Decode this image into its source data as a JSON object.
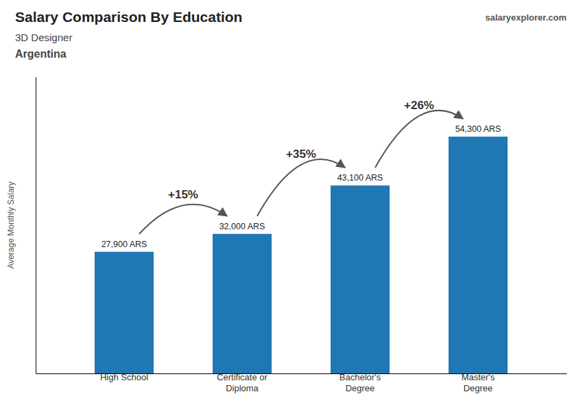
{
  "chart_data": {
    "type": "bar",
    "title": "Salary Comparison By Education",
    "subtitle": [
      "3D Designer",
      "Argentina"
    ],
    "source": "salaryexplorer.com",
    "categories": [
      "High School",
      "Certificate or\nDiploma",
      "Bachelor's\nDegree",
      "Master's\nDegree"
    ],
    "values": [
      27900,
      32000,
      43100,
      54300
    ],
    "value_labels": [
      "27,900 ARS",
      "32,000 ARS",
      "43,100 ARS",
      "54,300 ARS"
    ],
    "data_labels": true,
    "annotations": [
      "+15%",
      "+35%",
      "+26%"
    ],
    "ylabel": "Average Monthly Salary",
    "ylim": [
      0,
      68000
    ],
    "tick_labels": "x",
    "grid": false
  }
}
